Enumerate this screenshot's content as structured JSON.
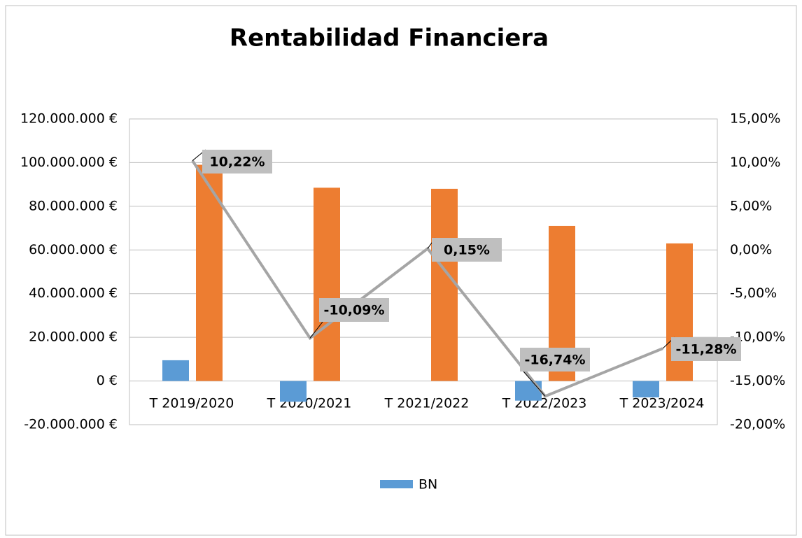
{
  "chart_data": {
    "type": "bar-line",
    "title": "Rentabilidad Financiera",
    "categories": [
      "T 2019/2020",
      "T 2020/2021",
      "T 2021/2022",
      "T 2022/2023",
      "T 2023/2024"
    ],
    "series": [
      {
        "name": "BN",
        "color": "#5b9bd5",
        "values": [
          9500000,
          -9500000,
          0,
          -9000000,
          -7500000
        ]
      },
      {
        "color": "#ed7d31",
        "values": [
          99000000,
          88500000,
          88000000,
          71000000,
          63000000
        ]
      },
      {
        "color": "#a5a5a5",
        "axis": "y2",
        "kind": "line",
        "values": [
          10.22,
          -10.09,
          0.15,
          -16.74,
          -11.28
        ],
        "value_labels": [
          "10,22%",
          "-10,09%",
          "0,15%",
          "-16,74%",
          "-11,28%"
        ]
      }
    ],
    "ylim": [
      -20000000,
      120000000
    ],
    "yticks": [
      {
        "value": -20000000,
        "label": "-20.000.000 €"
      },
      {
        "value": 0,
        "label": "0 €"
      },
      {
        "value": 20000000,
        "label": "20.000.000 €"
      },
      {
        "value": 40000000,
        "label": "40.000.000 €"
      },
      {
        "value": 60000000,
        "label": "60.000.000 €"
      },
      {
        "value": 80000000,
        "label": "80.000.000 €"
      },
      {
        "value": 100000000,
        "label": "100.000.000 €"
      },
      {
        "value": 120000000,
        "label": "120.000.000 €"
      }
    ],
    "y2lim": [
      -20,
      15
    ],
    "y2ticks": [
      {
        "value": -20,
        "label": "-20,00%"
      },
      {
        "value": -15,
        "label": "-15,00%"
      },
      {
        "value": -10,
        "label": "-10,00%"
      },
      {
        "value": -5,
        "label": "-5,00%"
      },
      {
        "value": 0,
        "label": "0,00%"
      },
      {
        "value": 5,
        "label": "5,00%"
      },
      {
        "value": 10,
        "label": "10,00%"
      },
      {
        "value": 15,
        "label": "15,00%"
      }
    ],
    "grid": true,
    "legend": "bottom"
  }
}
